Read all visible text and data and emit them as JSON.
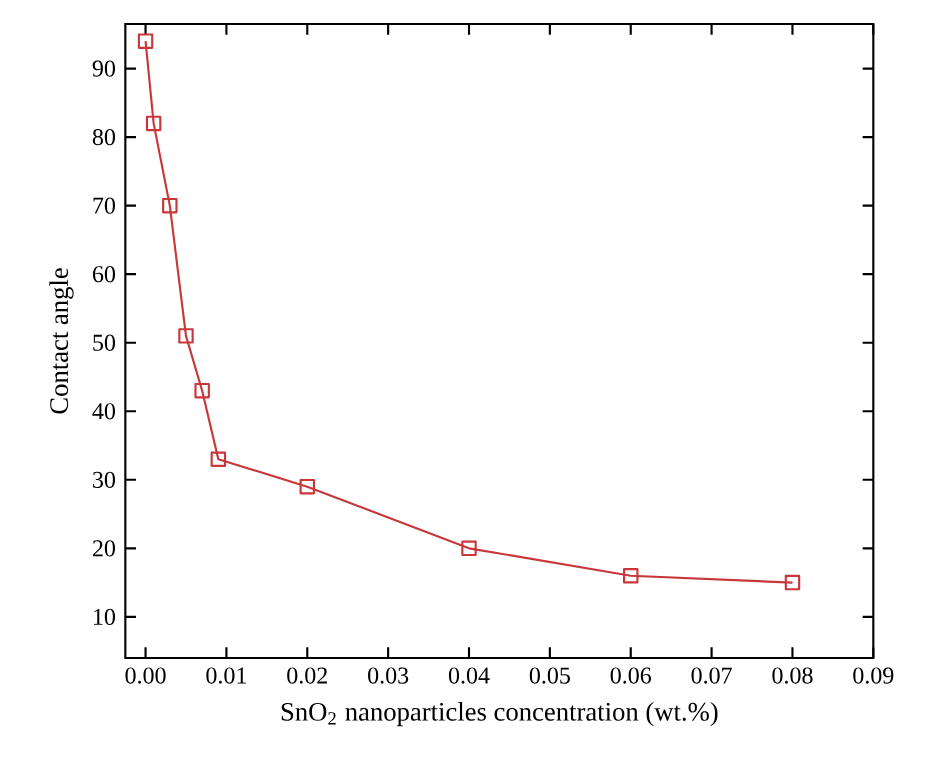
{
  "chart_data": {
    "type": "line",
    "xlabel": "SnO$_{2}$ nanoparticles concentration (wt.%)",
    "ylabel": "Contact angle",
    "x": [
      0,
      0.001,
      0.003,
      0.005,
      0.007,
      0.009,
      0.02,
      0.04,
      0.06,
      0.08
    ],
    "series": [
      {
        "color": "#c8373a",
        "values": [
          94,
          82,
          70,
          51,
          43,
          33,
          29,
          20,
          16,
          15
        ]
      }
    ],
    "xlim": [
      -0.0025,
      0.09
    ],
    "ylim": [
      4,
      96.5
    ],
    "xticks": [
      {
        "value": 0,
        "label": "0.00"
      },
      0.01,
      0.02,
      0.03,
      0.04,
      0.05,
      0.06,
      0.07,
      0.08,
      0.09
    ],
    "yticks": [
      10,
      20,
      30,
      40,
      50,
      60,
      70,
      80,
      90
    ],
    "marker": "square",
    "line_style": "solid"
  }
}
